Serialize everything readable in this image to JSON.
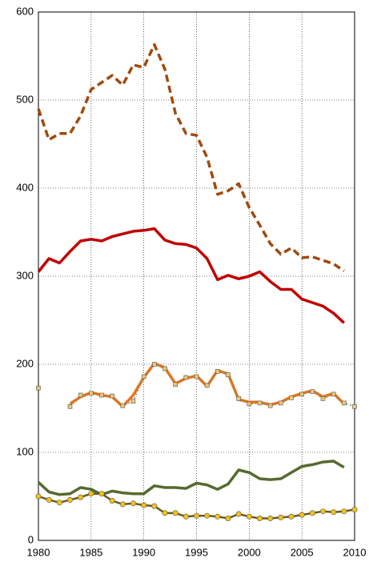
{
  "chart_data": {
    "type": "line",
    "x": [
      1980,
      1981,
      1982,
      1983,
      1984,
      1985,
      1986,
      1987,
      1988,
      1989,
      1990,
      1991,
      1992,
      1993,
      1994,
      1995,
      1996,
      1997,
      1998,
      1999,
      2000,
      2001,
      2002,
      2003,
      2004,
      2005,
      2006,
      2007,
      2008,
      2009,
      2010
    ],
    "xlim": [
      1980,
      2010
    ],
    "xticks": [
      1980,
      1985,
      1990,
      1995,
      2000,
      2005,
      2010
    ],
    "ylim": [
      0,
      600
    ],
    "yticks": [
      0,
      100,
      200,
      300,
      400,
      500,
      600
    ],
    "grid": true,
    "series": [
      {
        "color": "#a04a0c",
        "dash": "dashed",
        "width": 3.5,
        "values": [
          490,
          455,
          462,
          462,
          482,
          512,
          520,
          528,
          517,
          540,
          537,
          563,
          535,
          485,
          462,
          460,
          435,
          393,
          397,
          405,
          378,
          358,
          337,
          325,
          332,
          321,
          322,
          318,
          314,
          306,
          null
        ]
      },
      {
        "color": "#c00000",
        "dash": "solid",
        "width": 3.5,
        "values": [
          305,
          320,
          315,
          328,
          340,
          342,
          340,
          345,
          348,
          351,
          352,
          354,
          341,
          337,
          336,
          332,
          320,
          296,
          301,
          297,
          300,
          305,
          294,
          285,
          285,
          274,
          270,
          266,
          258,
          247,
          null
        ]
      },
      {
        "color": "#e8731c",
        "dash": "solid",
        "width": 3.5,
        "values": [
          null,
          null,
          null,
          155,
          163,
          168,
          165,
          163,
          152,
          165,
          185,
          201,
          196,
          178,
          184,
          187,
          175,
          193,
          189,
          160,
          157,
          157,
          154,
          157,
          163,
          167,
          170,
          163,
          167,
          155,
          null
        ]
      },
      {
        "color": "#8a8a60",
        "dash": "dotted",
        "width": 1.5,
        "marker": "square",
        "marker_color": "#e8c87a",
        "values": [
          173,
          null,
          null,
          152,
          165,
          167,
          165,
          164,
          153,
          158,
          186,
          200,
          195,
          177,
          185,
          186,
          176,
          192,
          188,
          161,
          155,
          156,
          153,
          156,
          162,
          166,
          169,
          161,
          166,
          156,
          152
        ]
      },
      {
        "color": "#556b2f",
        "dash": "solid",
        "width": 3.5,
        "values": [
          66,
          55,
          52,
          53,
          60,
          58,
          52,
          56,
          54,
          53,
          53,
          62,
          60,
          60,
          59,
          65,
          63,
          58,
          64,
          80,
          77,
          70,
          69,
          70,
          77,
          84,
          86,
          89,
          90,
          83,
          null
        ]
      },
      {
        "color": "#6b5a1a",
        "dash": "solid",
        "width": 2.5,
        "marker": "circle",
        "marker_color": "#f2c21b",
        "values": [
          50,
          46,
          43,
          46,
          49,
          53,
          53,
          45,
          41,
          42,
          40,
          39,
          31,
          31,
          27,
          28,
          28,
          27,
          25,
          30,
          27,
          25,
          25,
          26,
          27,
          29,
          31,
          33,
          32,
          33,
          35
        ]
      }
    ]
  }
}
